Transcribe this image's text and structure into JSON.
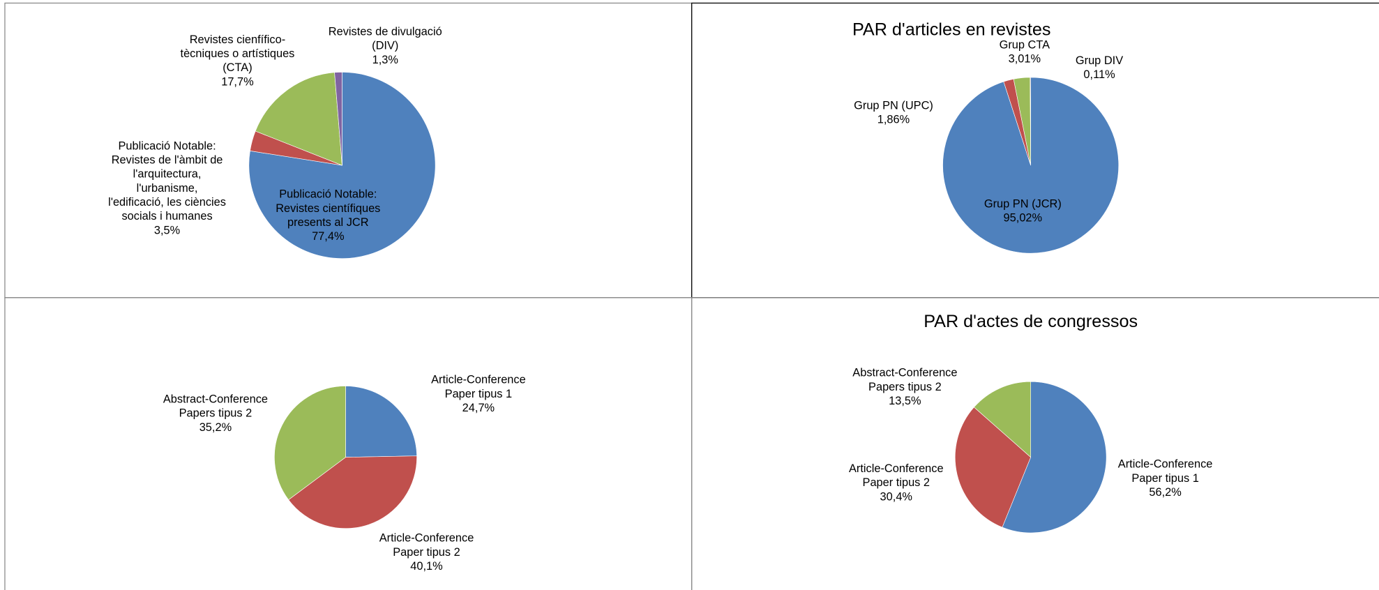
{
  "chart_data": [
    {
      "type": "pie",
      "categories": [
        "Publicació Notable:\nRevistes científiques\npresents al JCR",
        "Publicació Notable:\nRevistes de l'àmbit de\nl'arquitectura,\nl'urbanisme,\nl'edificació, les ciències\nsocials i humanes",
        "Revistes cienfífico-\ntècniques o artístiques\n(CTA)",
        "Revistes de divulgació\n(DIV)"
      ],
      "values": [
        77.4,
        3.5,
        17.7,
        1.3
      ],
      "value_labels": [
        "77,4%",
        "3,5%",
        "17,7%",
        "1,3%"
      ],
      "colors": [
        "#4f81bd",
        "#c0504d",
        "#9bbb59",
        "#8064a2"
      ]
    },
    {
      "type": "pie",
      "title": "PAR d'articles en revistes",
      "categories": [
        "Grup PN (JCR)",
        "Grup PN (UPC)",
        "Grup CTA",
        "Grup DIV"
      ],
      "values": [
        95.02,
        1.86,
        3.01,
        0.11
      ],
      "value_labels": [
        "95,02%",
        "1,86%",
        "3,01%",
        "0,11%"
      ],
      "colors": [
        "#4f81bd",
        "#c0504d",
        "#9bbb59",
        "#8064a2"
      ]
    },
    {
      "type": "pie",
      "categories": [
        "Article-Conference\nPaper tipus 1",
        "Article-Conference\nPaper tipus 2",
        "Abstract-Conference\nPapers tipus 2"
      ],
      "values": [
        24.7,
        40.1,
        35.2
      ],
      "value_labels": [
        "24,7%",
        "40,1%",
        "35,2%"
      ],
      "colors": [
        "#4f81bd",
        "#c0504d",
        "#9bbb59"
      ]
    },
    {
      "type": "pie",
      "title": "PAR d'actes de congressos",
      "categories": [
        "Article-Conference\nPaper tipus 1",
        "Article-Conference\nPaper tipus 2",
        "Abstract-Conference\nPapers tipus 2"
      ],
      "values": [
        56.2,
        30.4,
        13.5
      ],
      "value_labels": [
        "56,2%",
        "30,4%",
        "13,5%"
      ],
      "colors": [
        "#4f81bd",
        "#c0504d",
        "#9bbb59"
      ]
    }
  ]
}
